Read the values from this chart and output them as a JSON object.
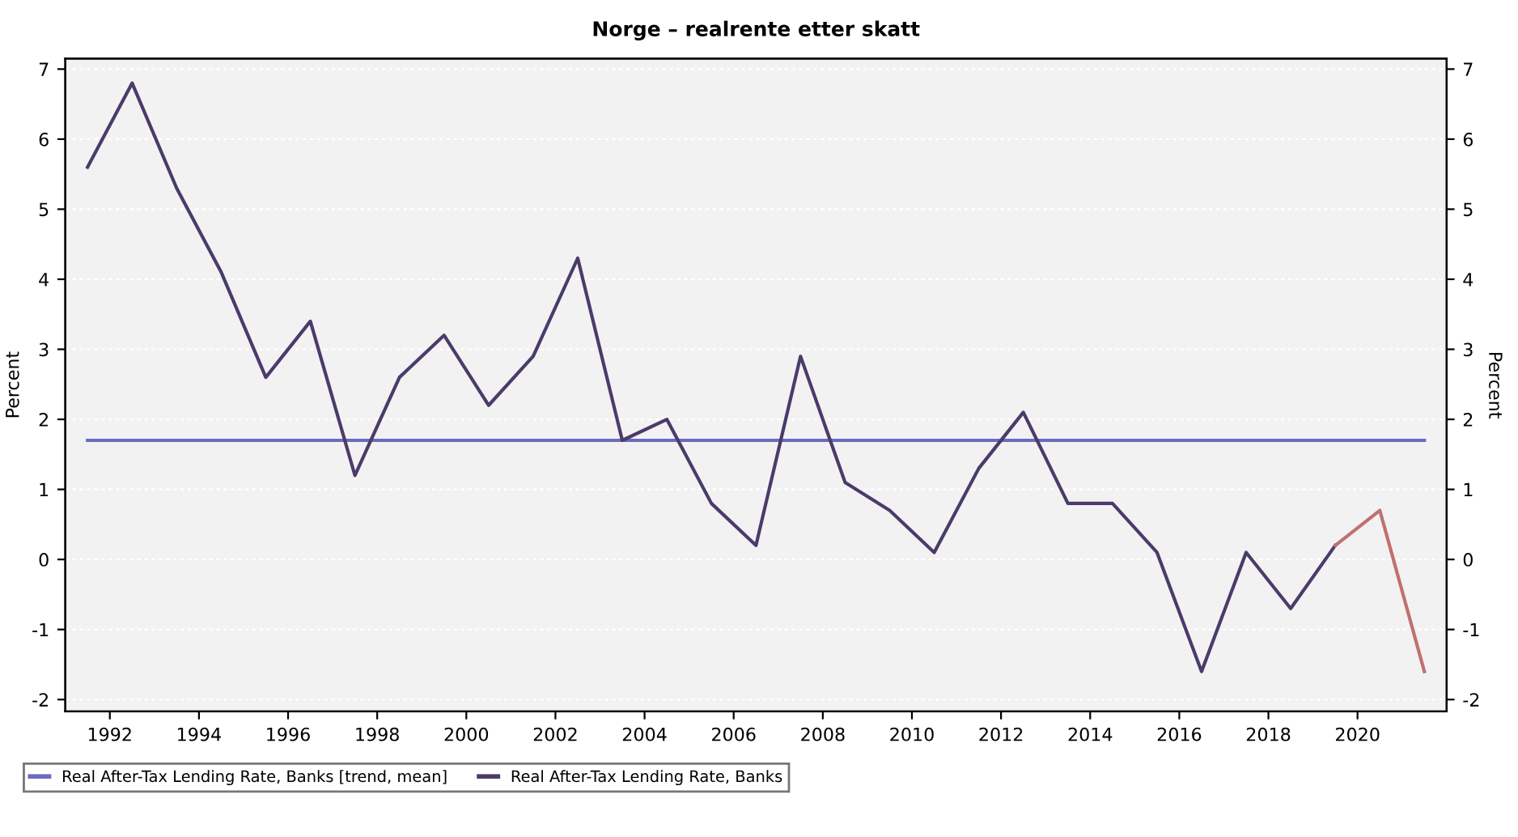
{
  "chart_data": {
    "type": "line",
    "title": "Norge – realrente etter skatt",
    "ylabel": "Percent",
    "y2label": "Percent",
    "xlim": [
      1991,
      2022
    ],
    "xticks": [
      1992,
      1994,
      1996,
      1998,
      2000,
      2002,
      2004,
      2006,
      2008,
      2010,
      2012,
      2014,
      2016,
      2018,
      2020
    ],
    "ylim": [
      -2.17,
      7.15
    ],
    "yticks": [
      -2,
      -1,
      0,
      1,
      2,
      3,
      4,
      5,
      6,
      7
    ],
    "y2lim": [
      -2.17,
      7.15
    ],
    "y2ticks": [
      -2,
      -1,
      0,
      1,
      2,
      3,
      4,
      5,
      6,
      7
    ],
    "grid": "y",
    "legend": "bottom",
    "line_style": "solid",
    "marker": "none",
    "series": [
      {
        "name": "Real After-Tax Lending Rate, Banks [trend, mean]",
        "color": "#6b6bbf",
        "x": [
          1991.5,
          2021.5
        ],
        "values": [
          1.7,
          1.7
        ]
      },
      {
        "name": "Real After-Tax Lending Rate, Banks",
        "color": "#4b3b6b",
        "x": [
          1991.5,
          1992.5,
          1993.5,
          1994.5,
          1995.5,
          1996.5,
          1997.5,
          1998.5,
          1999.5,
          2000.5,
          2001.5,
          2002.5,
          2003.5,
          2004.5,
          2005.5,
          2006.5,
          2007.5,
          2008.5,
          2009.5,
          2010.5,
          2011.5,
          2012.5,
          2013.5,
          2014.5,
          2015.5,
          2016.5,
          2017.5,
          2018.5,
          2019.5
        ],
        "values": [
          5.6,
          6.8,
          5.3,
          4.1,
          2.6,
          3.4,
          1.2,
          2.6,
          3.2,
          2.2,
          2.9,
          4.3,
          1.7,
          2.0,
          0.8,
          0.2,
          2.9,
          1.1,
          0.7,
          0.1,
          1.3,
          2.1,
          0.8,
          0.8,
          0.1,
          -1.6,
          0.1,
          -0.7,
          0.2
        ]
      },
      {
        "color": "#c07070",
        "x": [
          2019.5,
          2020.5,
          2021.5
        ],
        "values": [
          0.2,
          0.7,
          -1.6
        ]
      }
    ]
  }
}
